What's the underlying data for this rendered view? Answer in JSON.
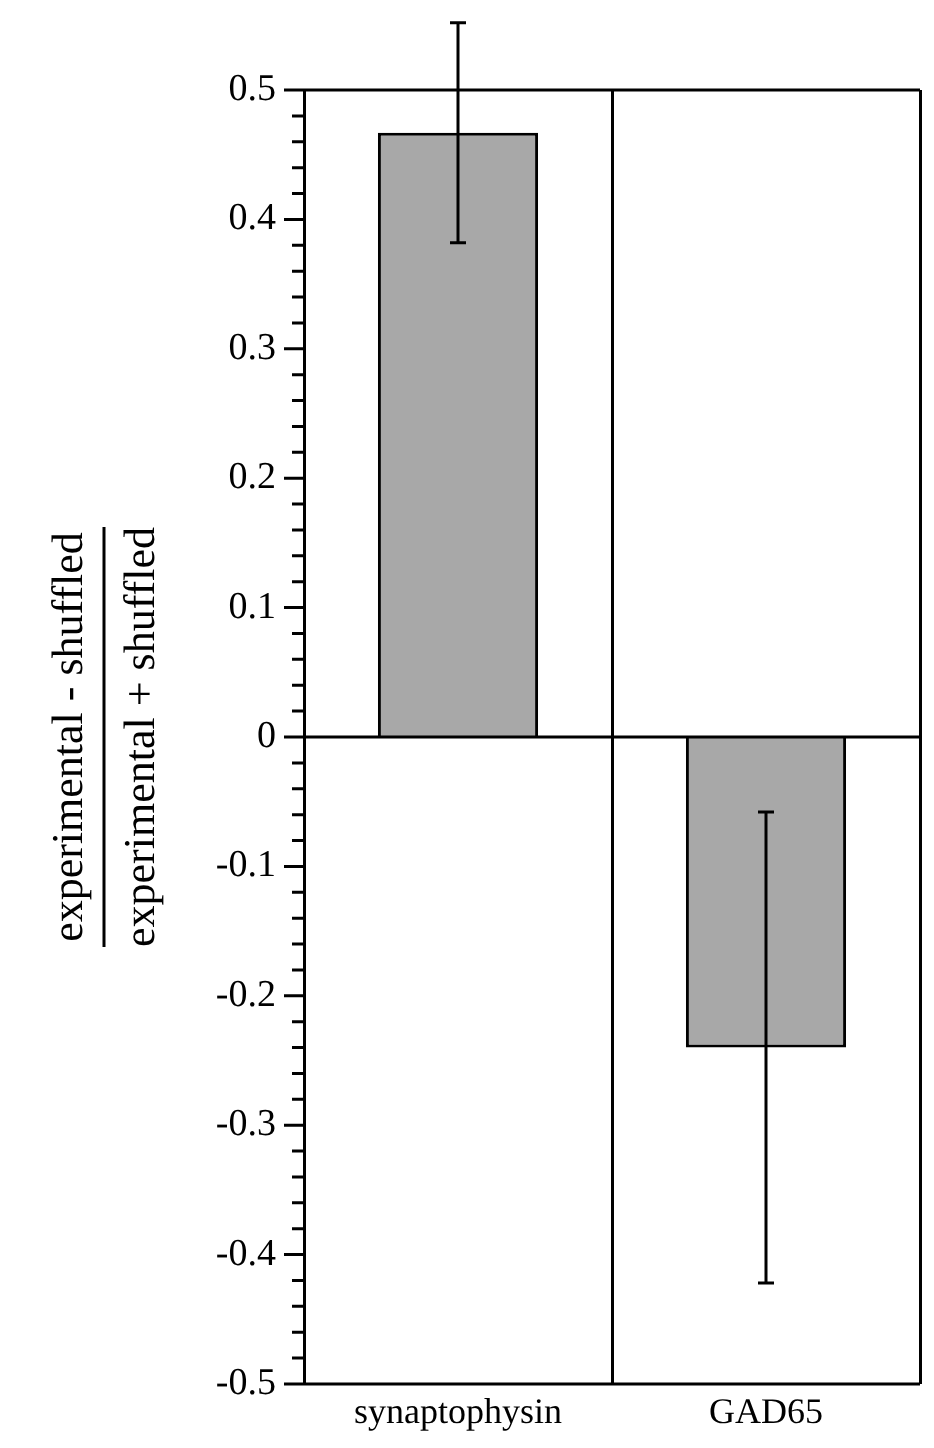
{
  "chart_data": {
    "type": "bar",
    "ylabel": "experimental - shuffled\nexperimental + shuffled",
    "categories": [
      "synaptophysin",
      "GAD65"
    ],
    "values": [
      0.467,
      -0.24
    ],
    "errors": [
      0.085,
      0.182
    ],
    "color": "#a8a8a8",
    "ylim": [
      -0.5,
      0.5
    ],
    "yticks": [
      -0.5,
      {
        "value": -0.48,
        "label": null
      },
      {
        "value": -0.46,
        "label": null
      },
      {
        "value": -0.44,
        "label": null
      },
      {
        "value": -0.42,
        "label": null
      },
      -0.4,
      {
        "value": -0.38,
        "label": null
      },
      {
        "value": -0.36,
        "label": null
      },
      {
        "value": -0.34,
        "label": null
      },
      {
        "value": -0.32,
        "label": null
      },
      -0.3,
      {
        "value": -0.28,
        "label": null
      },
      {
        "value": -0.26,
        "label": null
      },
      {
        "value": -0.24,
        "label": null
      },
      {
        "value": -0.22,
        "label": null
      },
      -0.2,
      {
        "value": -0.18,
        "label": null
      },
      {
        "value": -0.16,
        "label": null
      },
      {
        "value": -0.14,
        "label": null
      },
      {
        "value": -0.12,
        "label": null
      },
      -0.1,
      {
        "value": -0.08,
        "label": null
      },
      {
        "value": -0.06,
        "label": null
      },
      {
        "value": -0.04,
        "label": null
      },
      {
        "value": -0.02,
        "label": null
      },
      0,
      {
        "value": 0.02,
        "label": null
      },
      {
        "value": 0.04,
        "label": null
      },
      {
        "value": 0.06,
        "label": null
      },
      {
        "value": 0.08,
        "label": null
      },
      0.1,
      {
        "value": 0.12,
        "label": null
      },
      {
        "value": 0.14,
        "label": null
      },
      {
        "value": 0.16,
        "label": null
      },
      {
        "value": 0.18,
        "label": null
      },
      0.2,
      {
        "value": 0.22,
        "label": null
      },
      {
        "value": 0.24,
        "label": null
      },
      {
        "value": 0.26,
        "label": null
      },
      {
        "value": 0.28,
        "label": null
      },
      0.3,
      {
        "value": 0.32,
        "label": null
      },
      {
        "value": 0.34,
        "label": null
      },
      {
        "value": 0.36,
        "label": null
      },
      {
        "value": 0.38,
        "label": null
      },
      0.4,
      {
        "value": 0.42,
        "label": null
      },
      {
        "value": 0.44,
        "label": null
      },
      {
        "value": 0.46,
        "label": null
      },
      {
        "value": 0.48,
        "label": null
      },
      0.5
    ],
    "ref_lines": [
      {
        "axis": "y",
        "value": 0
      }
    ],
    "grid": "x",
    "legend": false
  }
}
